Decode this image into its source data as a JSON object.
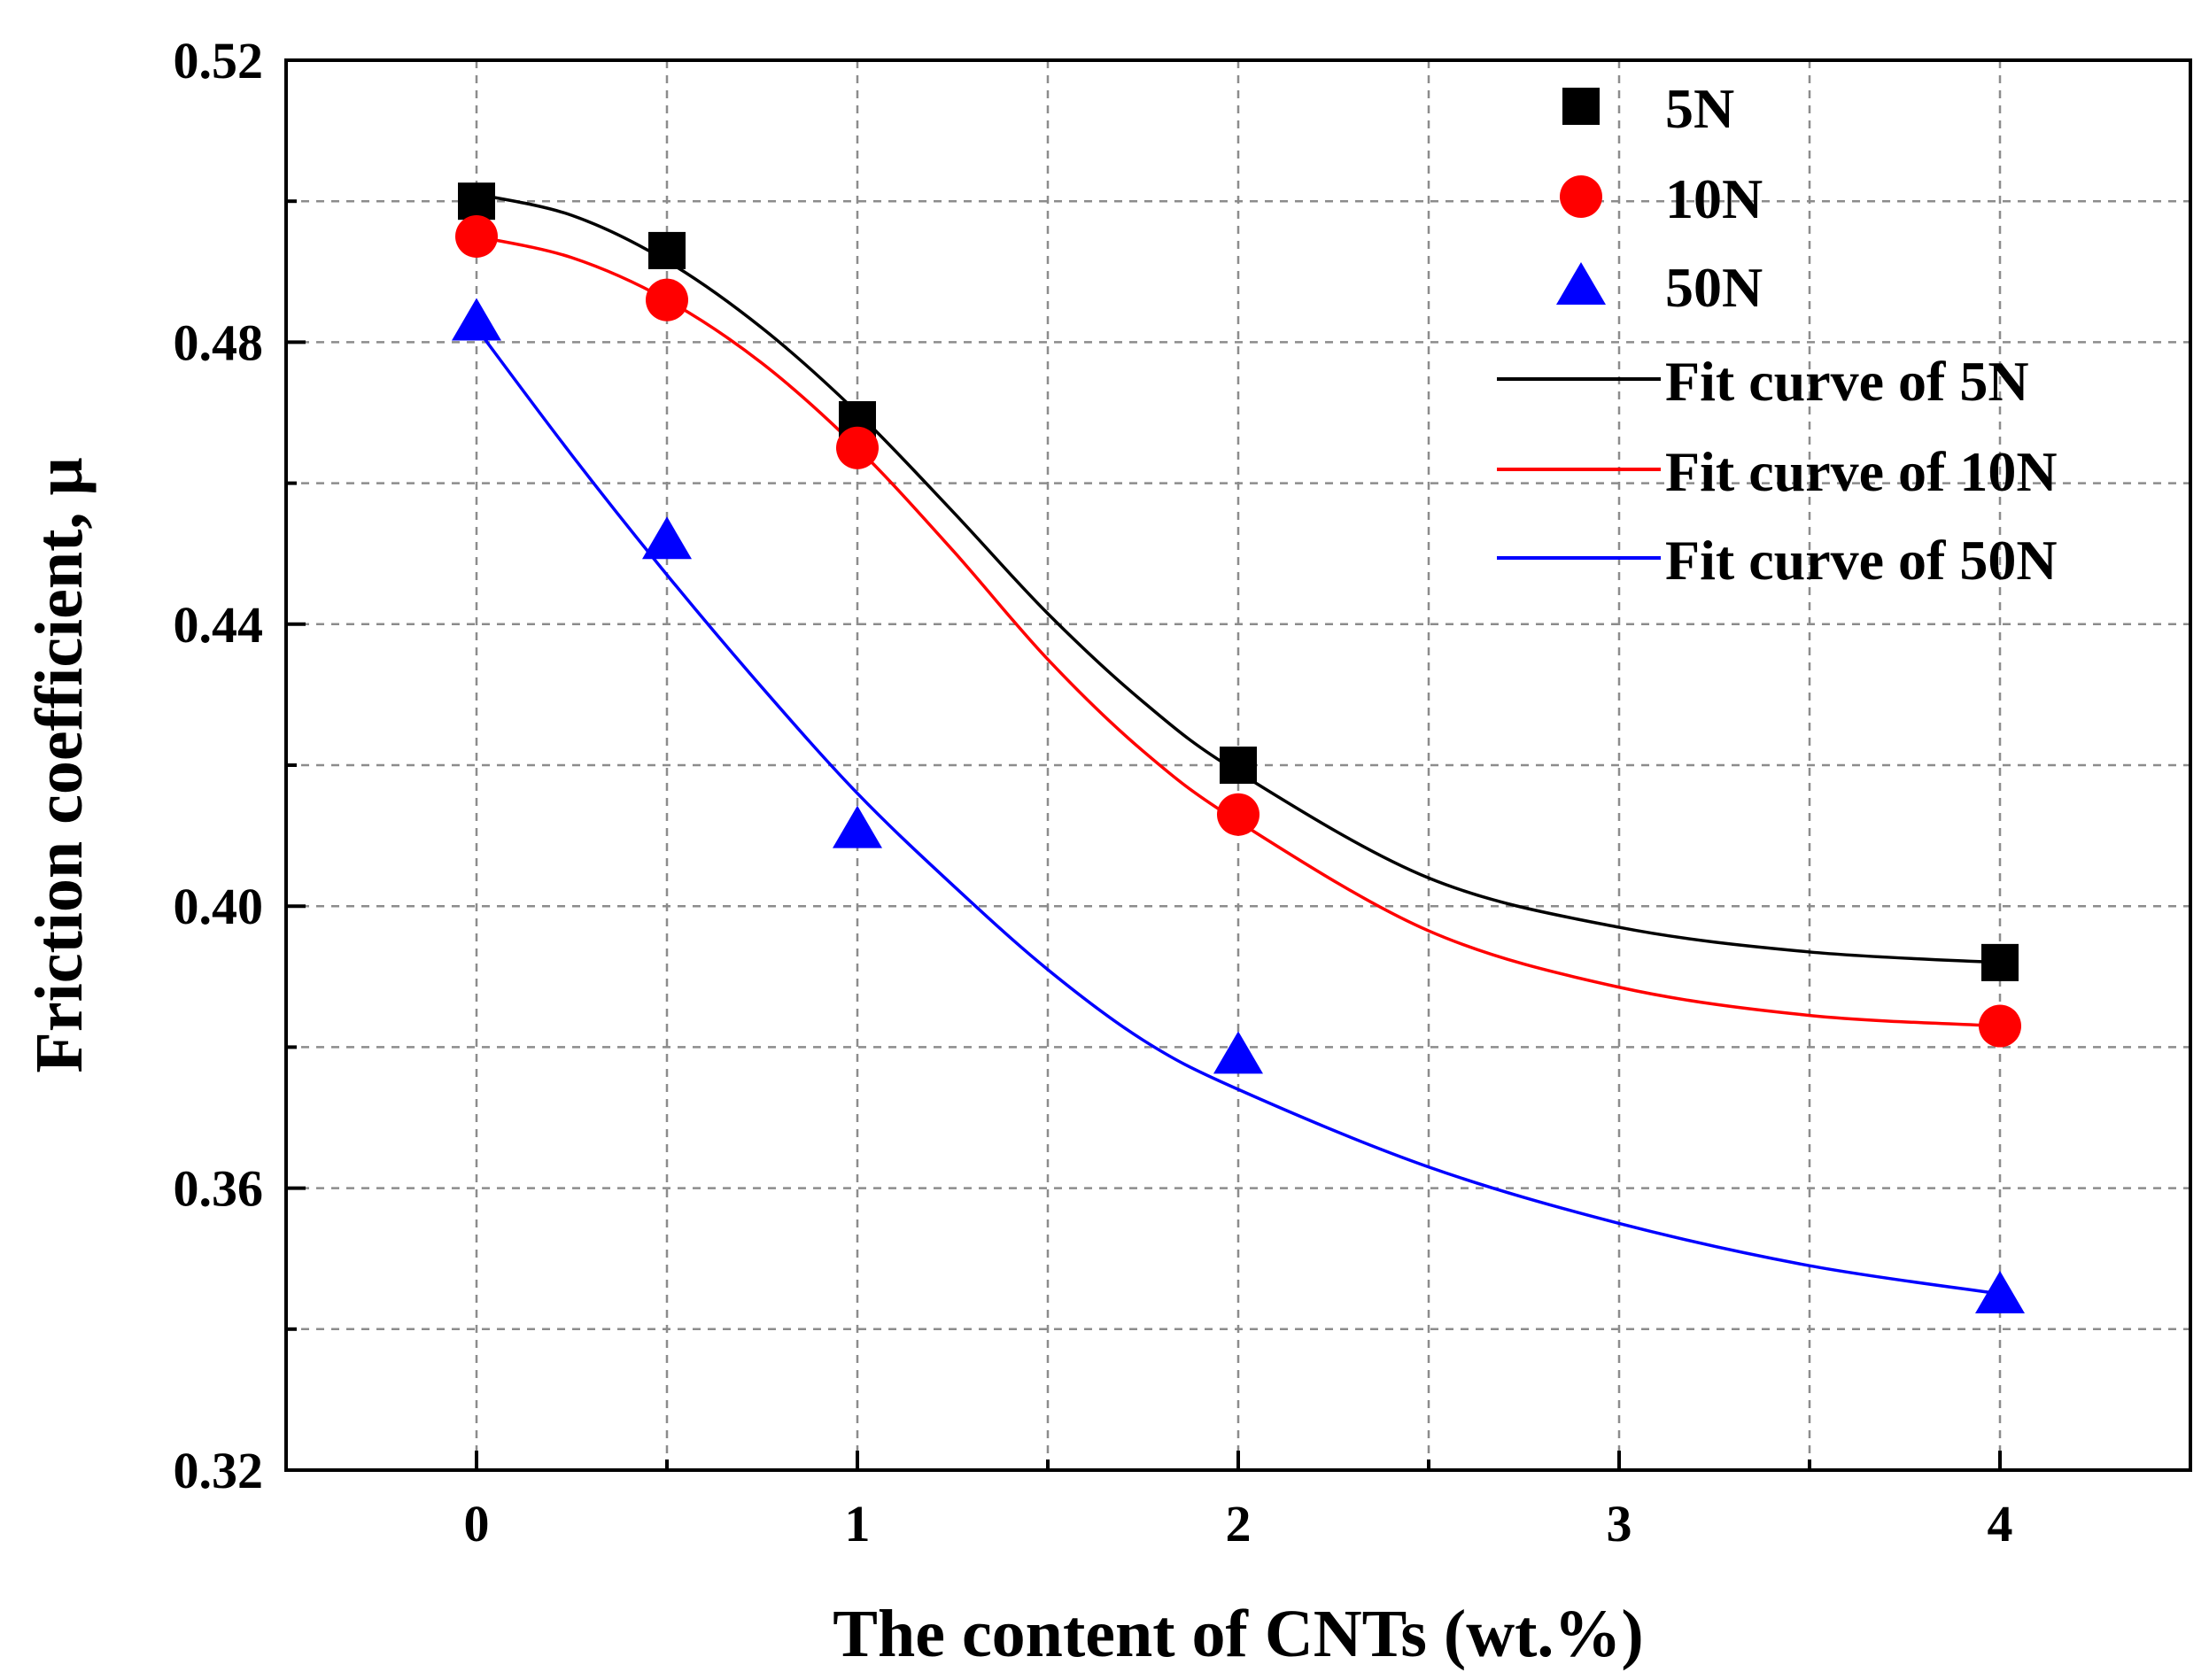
{
  "chart_data": {
    "type": "scatter",
    "title": "",
    "xlabel": "The content of CNTs (wt.%)",
    "ylabel": "Friction coefficient, μ",
    "xlim": [
      -0.5,
      4.5
    ],
    "ylim": [
      0.32,
      0.52
    ],
    "xticks": [
      0,
      1,
      2,
      3,
      4
    ],
    "yticks": [
      0.32,
      0.36,
      0.4,
      0.44,
      0.48,
      0.52
    ],
    "xtick_labels": [
      "0",
      "1",
      "2",
      "3",
      "4"
    ],
    "ytick_labels": [
      "0.32",
      "0.36",
      "0.40",
      "0.44",
      "0.48",
      "0.52"
    ],
    "grid": true,
    "legend_position": "top-right",
    "series": [
      {
        "name": "5N",
        "marker": "square",
        "color": "#000000",
        "x": [
          0,
          0.5,
          1,
          2,
          4
        ],
        "y": [
          0.5,
          0.493,
          0.469,
          0.42,
          0.392
        ]
      },
      {
        "name": "10N",
        "marker": "circle",
        "color": "#ff0000",
        "x": [
          0,
          0.5,
          1,
          2,
          4
        ],
        "y": [
          0.495,
          0.486,
          0.465,
          0.413,
          0.383
        ]
      },
      {
        "name": "50N",
        "marker": "triangle",
        "color": "#0000ff",
        "x": [
          0,
          0.5,
          1,
          2,
          4
        ],
        "y": [
          0.483,
          0.452,
          0.411,
          0.379,
          0.345
        ]
      }
    ],
    "fit_curves": [
      {
        "name": "Fit curve of 5N",
        "color": "#000000",
        "x": [
          0,
          0.25,
          0.5,
          0.75,
          1,
          1.25,
          1.5,
          1.75,
          2,
          2.5,
          3,
          3.5,
          4
        ],
        "y": [
          0.501,
          0.498,
          0.4915,
          0.482,
          0.47,
          0.456,
          0.4415,
          0.429,
          0.419,
          0.404,
          0.397,
          0.3935,
          0.392
        ]
      },
      {
        "name": "Fit curve of 10N",
        "color": "#ff0000",
        "x": [
          0,
          0.25,
          0.5,
          0.75,
          1,
          1.25,
          1.5,
          1.75,
          2,
          2.5,
          3,
          3.5,
          4
        ],
        "y": [
          0.495,
          0.492,
          0.486,
          0.477,
          0.465,
          0.4505,
          0.435,
          0.422,
          0.412,
          0.3965,
          0.3885,
          0.3845,
          0.383
        ]
      },
      {
        "name": "Fit curve of 50N",
        "color": "#0000ff",
        "x": [
          0,
          0.25,
          0.5,
          0.75,
          1,
          1.25,
          1.5,
          1.75,
          2,
          2.5,
          3,
          3.5,
          4
        ],
        "y": [
          0.482,
          0.464,
          0.447,
          0.431,
          0.416,
          0.403,
          0.391,
          0.381,
          0.374,
          0.363,
          0.355,
          0.349,
          0.345
        ]
      }
    ]
  }
}
